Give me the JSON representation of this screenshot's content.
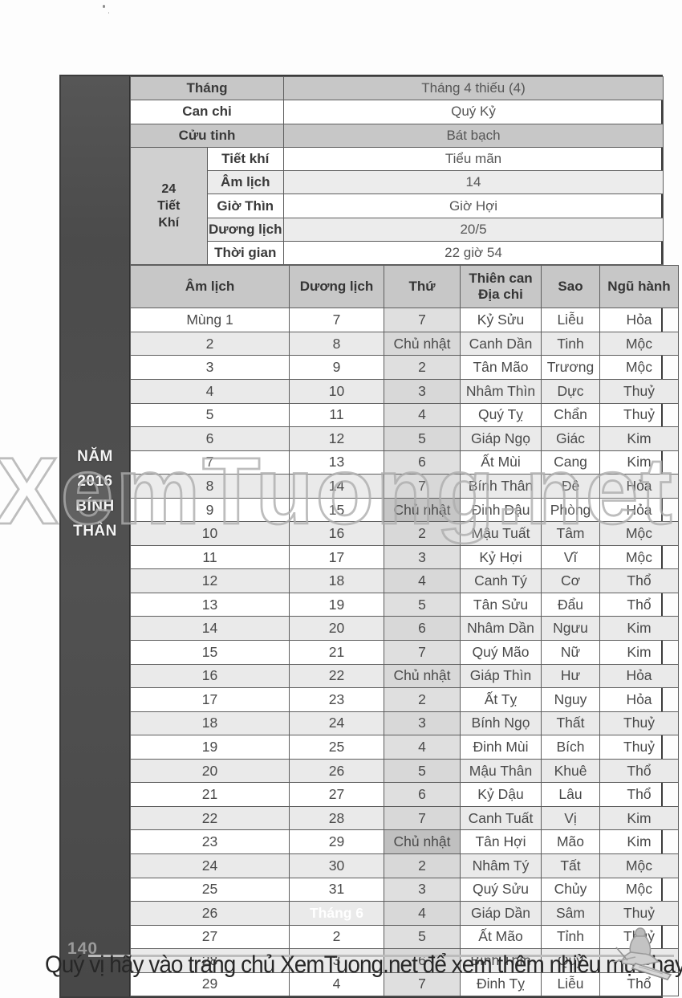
{
  "colors": {
    "sidebar_bg": "#4d4d4d",
    "header_gray": "#c7c7c7",
    "light_stripe": "#ececec",
    "stripe": "#eaeaea",
    "thu_col": "#dfdfdf",
    "sunday": "#c0c0c0",
    "month_cell_bg": "#4f4f4f"
  },
  "sidebar": {
    "lines": [
      "NĂM",
      "2016",
      "BÍNH",
      "THÂN"
    ]
  },
  "month_info": {
    "rows": [
      {
        "label": "Tháng",
        "value": "Tháng 4 thiếu (4)"
      },
      {
        "label": "Can chi",
        "value": "Quý Kỷ"
      },
      {
        "label": "Cửu tinh",
        "value": "Bát bạch"
      }
    ],
    "tiet_khi": {
      "title": [
        "24",
        "Tiết",
        "Khí"
      ],
      "rows": [
        {
          "label": "Tiết khí",
          "value": "Tiểu mãn"
        },
        {
          "label": "Âm lịch",
          "value": "14"
        },
        {
          "label": "Giờ Thìn",
          "value": "Giờ Hợi"
        },
        {
          "label": "Dương lịch",
          "value": "20/5"
        },
        {
          "label": "Thời gian",
          "value": "22 giờ 54"
        }
      ]
    }
  },
  "calendar": {
    "headers": {
      "am_lich": "Âm lịch",
      "duong_lich": "Dương lịch",
      "thu": "Thứ",
      "thien_can_1": "Thiên can",
      "thien_can_2": "Địa chi",
      "sao": "Sao",
      "ngu_hanh": "Ngũ hành"
    },
    "rows": [
      {
        "c": [
          "Mùng 1",
          "7",
          "7",
          "Kỷ Sửu",
          "Liễu",
          "Hỏa"
        ]
      },
      {
        "c": [
          "2",
          "8",
          "Chủ nhật",
          "Canh Dần",
          "Tinh",
          "Mộc"
        ],
        "sunday": true
      },
      {
        "c": [
          "3",
          "9",
          "2",
          "Tân Mão",
          "Trương",
          "Mộc"
        ]
      },
      {
        "c": [
          "4",
          "10",
          "3",
          "Nhâm Thìn",
          "Dực",
          "Thuỷ"
        ]
      },
      {
        "c": [
          "5",
          "11",
          "4",
          "Quý Tỵ",
          "Chẩn",
          "Thuỷ"
        ]
      },
      {
        "c": [
          "6",
          "12",
          "5",
          "Giáp Ngọ",
          "Giác",
          "Kim"
        ]
      },
      {
        "c": [
          "7",
          "13",
          "6",
          "Ất Mùi",
          "Cang",
          "Kim"
        ]
      },
      {
        "c": [
          "8",
          "14",
          "7",
          "Bính Thân",
          "Đê",
          "Hỏa"
        ]
      },
      {
        "c": [
          "9",
          "15",
          "Chủ nhật",
          "Đinh Dậu",
          "Phòng",
          "Hỏa"
        ],
        "sunday": true
      },
      {
        "c": [
          "10",
          "16",
          "2",
          "Mậu Tuất",
          "Tâm",
          "Mộc"
        ]
      },
      {
        "c": [
          "11",
          "17",
          "3",
          "Kỷ Hợi",
          "Vĩ",
          "Mộc"
        ]
      },
      {
        "c": [
          "12",
          "18",
          "4",
          "Canh Tý",
          "Cơ",
          "Thổ"
        ]
      },
      {
        "c": [
          "13",
          "19",
          "5",
          "Tân Sửu",
          "Đẩu",
          "Thổ"
        ]
      },
      {
        "c": [
          "14",
          "20",
          "6",
          "Nhâm Dần",
          "Ngưu",
          "Kim"
        ]
      },
      {
        "c": [
          "15",
          "21",
          "7",
          "Quý Mão",
          "Nữ",
          "Kim"
        ]
      },
      {
        "c": [
          "16",
          "22",
          "Chủ nhật",
          "Giáp Thìn",
          "Hư",
          "Hỏa"
        ],
        "sunday": true
      },
      {
        "c": [
          "17",
          "23",
          "2",
          "Ất Tỵ",
          "Nguy",
          "Hỏa"
        ]
      },
      {
        "c": [
          "18",
          "24",
          "3",
          "Bính Ngọ",
          "Thất",
          "Thuỷ"
        ]
      },
      {
        "c": [
          "19",
          "25",
          "4",
          "Đinh Mùi",
          "Bích",
          "Thuỷ"
        ]
      },
      {
        "c": [
          "20",
          "26",
          "5",
          "Mậu Thân",
          "Khuê",
          "Thổ"
        ]
      },
      {
        "c": [
          "21",
          "27",
          "6",
          "Kỷ Dậu",
          "Lâu",
          "Thổ"
        ]
      },
      {
        "c": [
          "22",
          "28",
          "7",
          "Canh Tuất",
          "Vị",
          "Kim"
        ]
      },
      {
        "c": [
          "23",
          "29",
          "Chủ nhật",
          "Tân Hợi",
          "Mão",
          "Kim"
        ],
        "sunday": true
      },
      {
        "c": [
          "24",
          "30",
          "2",
          "Nhâm Tý",
          "Tất",
          "Mộc"
        ]
      },
      {
        "c": [
          "25",
          "31",
          "3",
          "Quý Sửu",
          "Chủy",
          "Mộc"
        ]
      },
      {
        "c": [
          "26",
          "Tháng 6",
          "4",
          "Giáp Dần",
          "Sâm",
          "Thuỷ"
        ],
        "month_label": true
      },
      {
        "c": [
          "27",
          "2",
          "5",
          "Ất Mão",
          "Tỉnh",
          "Thuỷ"
        ]
      },
      {
        "c": [
          "28",
          "3",
          "6",
          "Bính Thìn",
          "Quỷ",
          "Thổ"
        ]
      },
      {
        "c": [
          "29",
          "4",
          "7",
          "Đinh Tỵ",
          "Liễu",
          "Thổ"
        ]
      }
    ]
  },
  "watermark": "XemTuong.net",
  "footer": {
    "page_number": "140",
    "text_prefix": "Quý vị hãy vào trang chủ ",
    "link": "XemTuong.net",
    "text_suffix": " để xem thêm nhiều mục hay khác"
  }
}
